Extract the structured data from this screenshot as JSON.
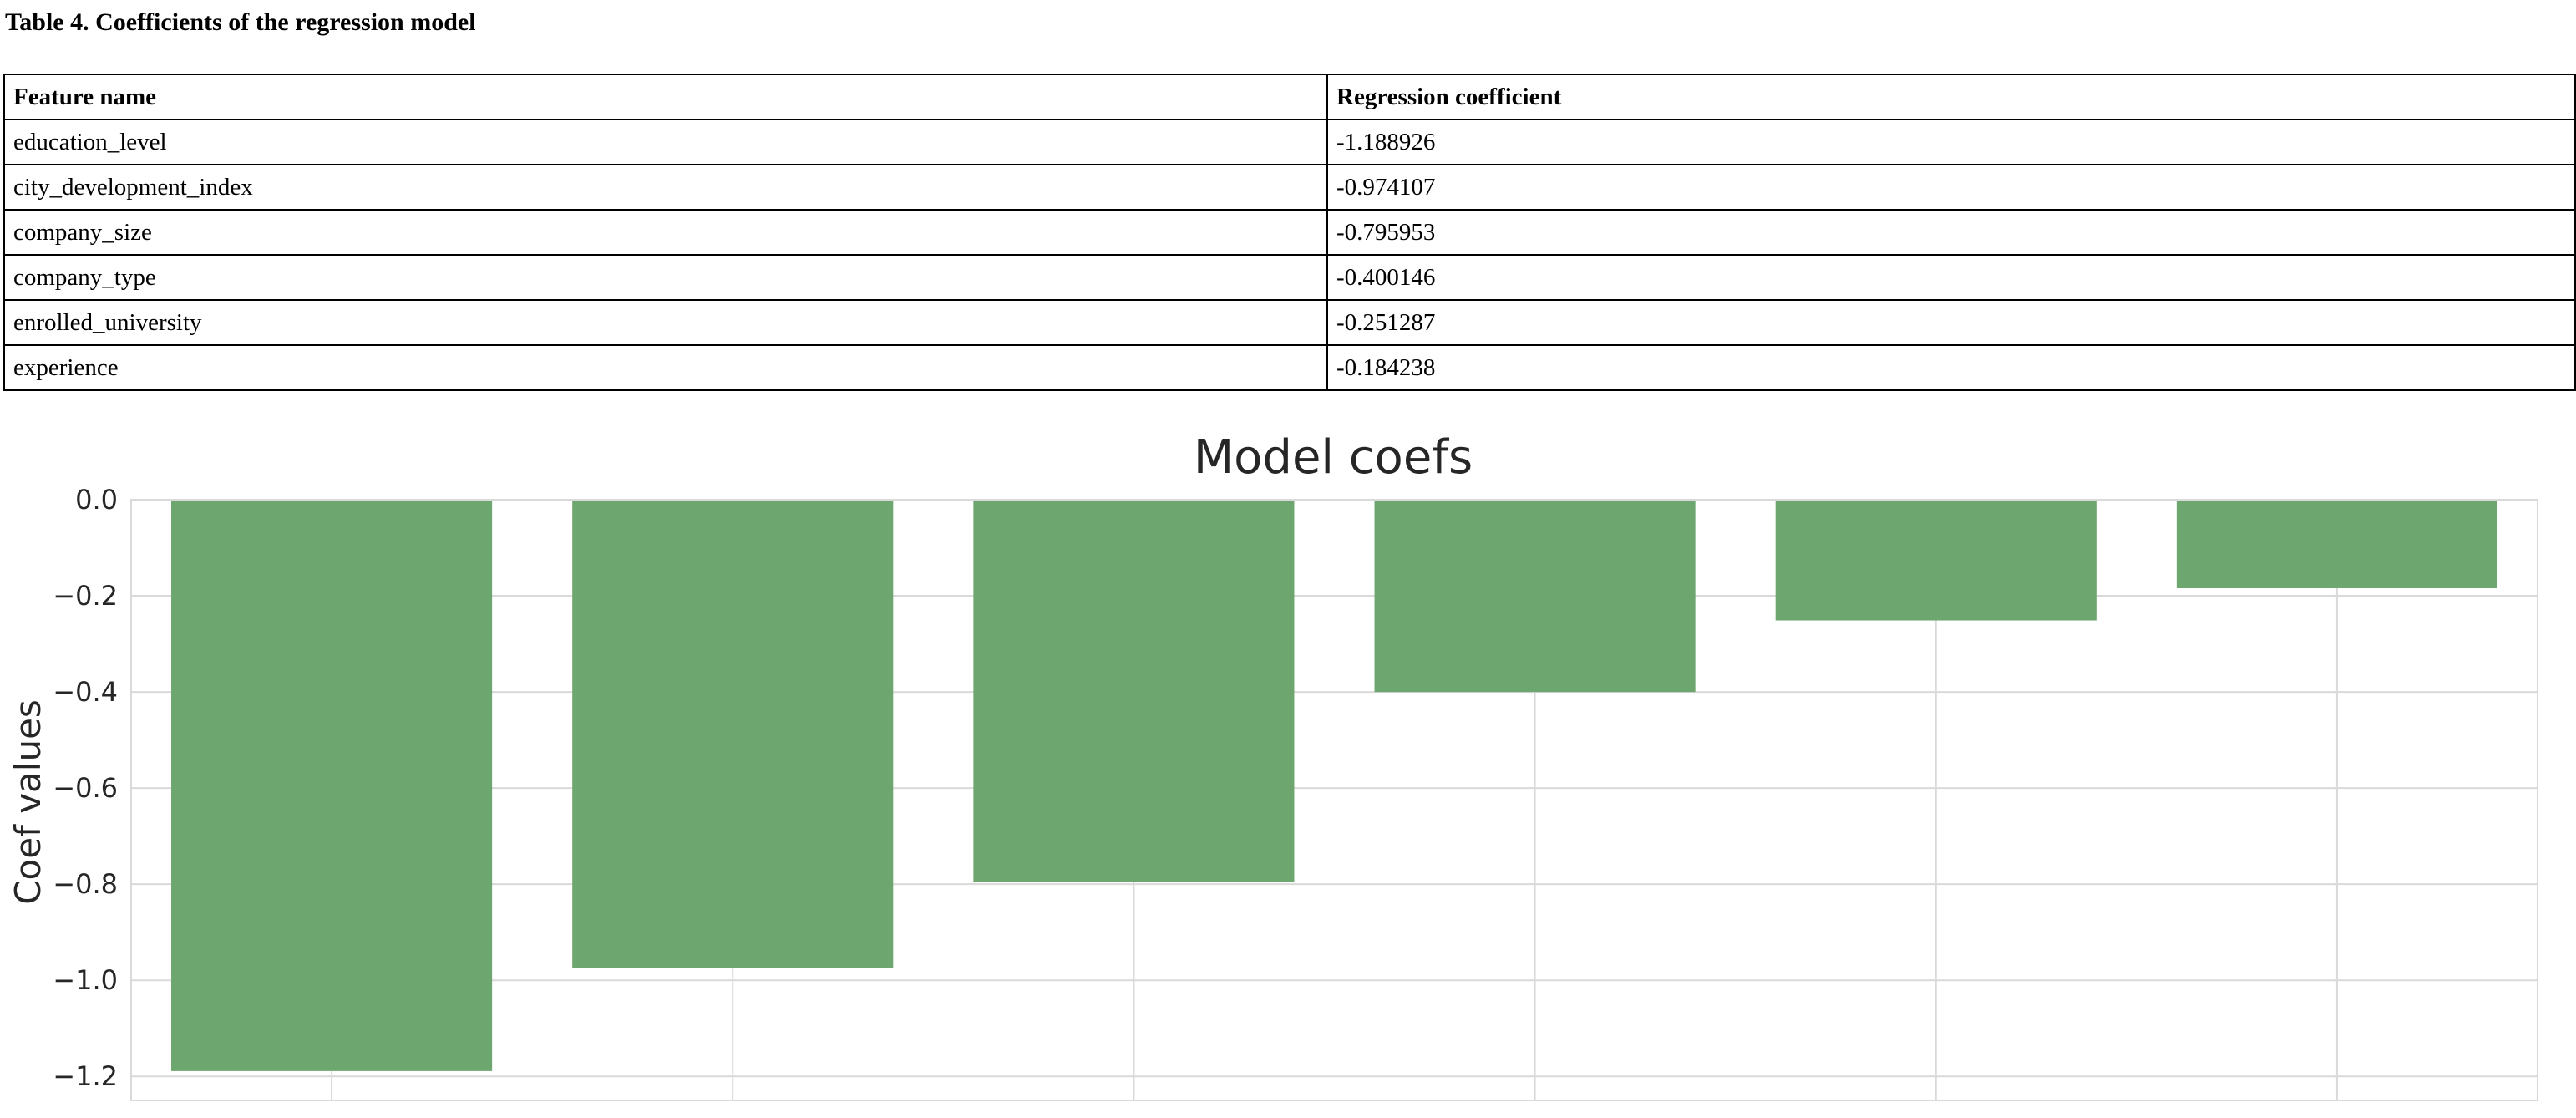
{
  "table": {
    "title": "Table 4. Coefficients of the regression model",
    "headers": [
      "Feature name",
      "Regression coefficient"
    ],
    "rows": [
      [
        "education_level",
        "-1.188926"
      ],
      [
        "city_development_index",
        "-0.974107"
      ],
      [
        "company_size",
        "-0.795953"
      ],
      [
        "company_type",
        "-0.400146"
      ],
      [
        "enrolled_university",
        "-0.251287"
      ],
      [
        "experience",
        "-0.184238"
      ]
    ]
  },
  "chart_data": {
    "type": "bar",
    "title": "Model coefs",
    "ylabel": "Coef values",
    "xlabel": "",
    "categories": [
      "",
      "",
      "",
      "",
      "",
      ""
    ],
    "values": [
      -1.188926,
      -0.974107,
      -0.795953,
      -0.400146,
      -0.251287,
      -0.184238
    ],
    "ylim": [
      -1.25,
      0.0
    ],
    "yticks": [
      "0.0",
      "−0.2",
      "−0.4",
      "−0.6",
      "−0.8",
      "−1.0",
      "−1.2"
    ],
    "ytick_values": [
      0.0,
      -0.2,
      -0.4,
      -0.6,
      -0.8,
      -1.0,
      -1.2
    ],
    "grid": true,
    "bar_color": "#6ea66f",
    "grid_color": "#d9d9d9"
  }
}
